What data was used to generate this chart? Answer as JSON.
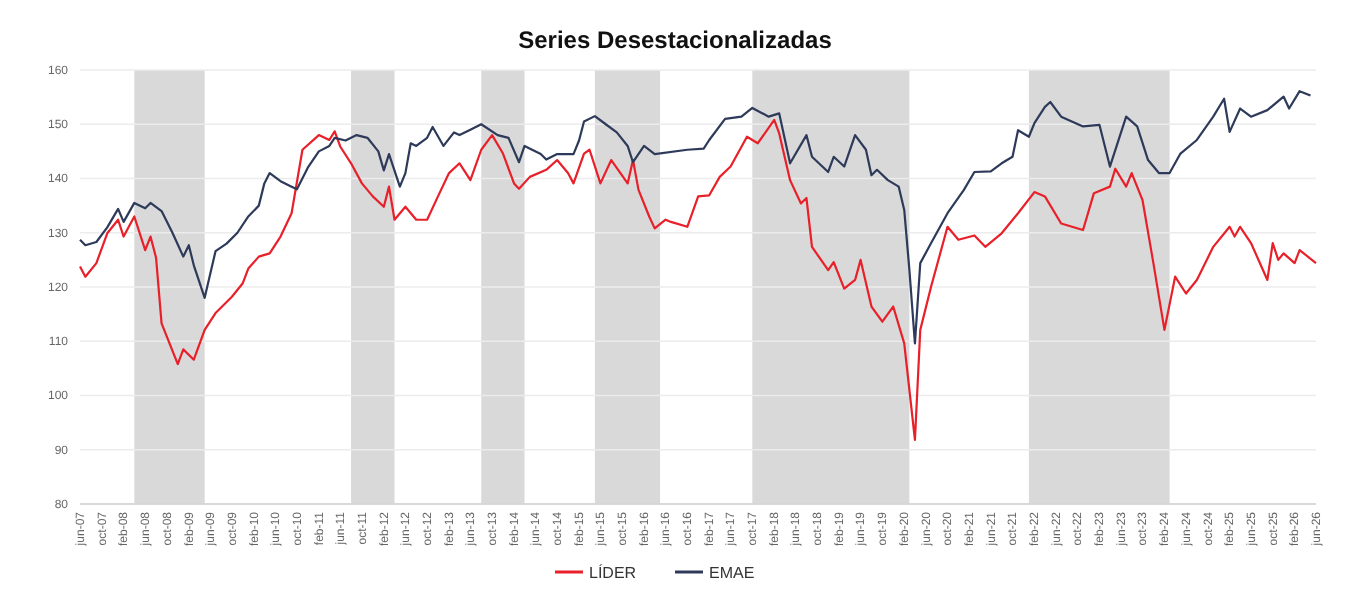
{
  "chart_data": {
    "type": "line",
    "title": "Series Desestacionalizadas",
    "legend": "bottom",
    "grid": "y",
    "marker": "none",
    "line_style": "solid",
    "xlim": [
      "2007-06",
      "2026-06"
    ],
    "ylim": [
      80,
      160
    ],
    "yticks": [
      80,
      90,
      100,
      110,
      120,
      130,
      140,
      150,
      160
    ],
    "xticks": [
      {
        "value": "2007-06",
        "label": "jun-07"
      },
      {
        "value": "2007-10",
        "label": "oct-07"
      },
      {
        "value": "2008-02",
        "label": "feb-08"
      },
      {
        "value": "2008-06",
        "label": "jun-08"
      },
      {
        "value": "2008-10",
        "label": "oct-08"
      },
      {
        "value": "2009-02",
        "label": "feb-09"
      },
      {
        "value": "2009-06",
        "label": "jun-09"
      },
      {
        "value": "2009-10",
        "label": "oct-09"
      },
      {
        "value": "2010-02",
        "label": "feb-10"
      },
      {
        "value": "2010-06",
        "label": "jun-10"
      },
      {
        "value": "2010-10",
        "label": "oct-10"
      },
      {
        "value": "2011-02",
        "label": "feb-11"
      },
      {
        "value": "2011-06",
        "label": "jun-11"
      },
      {
        "value": "2011-10",
        "label": "oct-11"
      },
      {
        "value": "2012-02",
        "label": "feb-12"
      },
      {
        "value": "2012-06",
        "label": "jun-12"
      },
      {
        "value": "2012-10",
        "label": "oct-12"
      },
      {
        "value": "2013-02",
        "label": "feb-13"
      },
      {
        "value": "2013-06",
        "label": "jun-13"
      },
      {
        "value": "2013-10",
        "label": "oct-13"
      },
      {
        "value": "2014-02",
        "label": "feb-14"
      },
      {
        "value": "2014-06",
        "label": "jun-14"
      },
      {
        "value": "2014-10",
        "label": "oct-14"
      },
      {
        "value": "2015-02",
        "label": "feb-15"
      },
      {
        "value": "2015-06",
        "label": "jun-15"
      },
      {
        "value": "2015-10",
        "label": "oct-15"
      },
      {
        "value": "2016-02",
        "label": "feb-16"
      },
      {
        "value": "2016-06",
        "label": "jun-16"
      },
      {
        "value": "2016-10",
        "label": "oct-16"
      },
      {
        "value": "2017-02",
        "label": "feb-17"
      },
      {
        "value": "2017-06",
        "label": "jun-17"
      },
      {
        "value": "2017-10",
        "label": "oct-17"
      },
      {
        "value": "2018-02",
        "label": "feb-18"
      },
      {
        "value": "2018-06",
        "label": "jun-18"
      },
      {
        "value": "2018-10",
        "label": "oct-18"
      },
      {
        "value": "2019-02",
        "label": "feb-19"
      },
      {
        "value": "2019-06",
        "label": "jun-19"
      },
      {
        "value": "2019-10",
        "label": "oct-19"
      },
      {
        "value": "2020-02",
        "label": "feb-20"
      },
      {
        "value": "2020-06",
        "label": "jun-20"
      },
      {
        "value": "2020-10",
        "label": "oct-20"
      },
      {
        "value": "2021-02",
        "label": "feb-21"
      },
      {
        "value": "2021-06",
        "label": "jun-21"
      },
      {
        "value": "2021-10",
        "label": "oct-21"
      },
      {
        "value": "2022-02",
        "label": "feb-22"
      },
      {
        "value": "2022-06",
        "label": "jun-22"
      },
      {
        "value": "2022-10",
        "label": "oct-22"
      },
      {
        "value": "2023-02",
        "label": "feb-23"
      },
      {
        "value": "2023-06",
        "label": "jun-23"
      },
      {
        "value": "2023-10",
        "label": "oct-23"
      },
      {
        "value": "2024-02",
        "label": "feb-24"
      },
      {
        "value": "2024-06",
        "label": "jun-24"
      },
      {
        "value": "2024-10",
        "label": "oct-24"
      },
      {
        "value": "2025-02",
        "label": "feb-25"
      },
      {
        "value": "2025-06",
        "label": "jun-25"
      },
      {
        "value": "2025-10",
        "label": "oct-25"
      },
      {
        "value": "2026-02",
        "label": "feb-26"
      },
      {
        "value": "2026-06",
        "label": "jun-26"
      }
    ],
    "bands": [
      {
        "axis": "x",
        "from": "2008-04",
        "to": "2009-05",
        "color": "#d9d9d9"
      },
      {
        "axis": "x",
        "from": "2011-08",
        "to": "2012-04",
        "color": "#d9d9d9"
      },
      {
        "axis": "x",
        "from": "2013-08",
        "to": "2014-04",
        "color": "#d9d9d9"
      },
      {
        "axis": "x",
        "from": "2015-05",
        "to": "2016-05",
        "color": "#d9d9d9"
      },
      {
        "axis": "x",
        "from": "2017-10",
        "to": "2020-03",
        "color": "#d9d9d9"
      },
      {
        "axis": "x",
        "from": "2022-01",
        "to": "2024-03",
        "color": "#d9d9d9"
      }
    ],
    "series": [
      {
        "name": "LÍDER",
        "color": "#e8202a",
        "x": [
          "2007-06",
          "2007-07",
          "2007-09",
          "2007-11",
          "2008-01",
          "2008-02",
          "2008-03",
          "2008-04",
          "2008-06",
          "2008-07",
          "2008-08",
          "2008-09",
          "2008-12",
          "2009-01",
          "2009-03",
          "2009-05",
          "2009-07",
          "2009-10",
          "2009-12",
          "2010-01",
          "2010-03",
          "2010-05",
          "2010-07",
          "2010-09",
          "2010-11",
          "2011-02",
          "2011-04",
          "2011-05",
          "2011-06",
          "2011-08",
          "2011-10",
          "2011-12",
          "2012-02",
          "2012-03",
          "2012-04",
          "2012-06",
          "2012-08",
          "2012-10",
          "2012-12",
          "2013-02",
          "2013-04",
          "2013-06",
          "2013-08",
          "2013-10",
          "2013-12",
          "2014-02",
          "2014-03",
          "2014-05",
          "2014-08",
          "2014-10",
          "2014-12",
          "2015-01",
          "2015-03",
          "2015-04",
          "2015-06",
          "2015-08",
          "2015-11",
          "2015-12",
          "2016-01",
          "2016-03",
          "2016-04",
          "2016-06",
          "2016-07",
          "2016-10",
          "2016-12",
          "2017-02",
          "2017-04",
          "2017-06",
          "2017-09",
          "2017-11",
          "2018-02",
          "2018-03",
          "2018-05",
          "2018-07",
          "2018-08",
          "2018-09",
          "2018-12",
          "2019-01",
          "2019-03",
          "2019-05",
          "2019-06",
          "2019-08",
          "2019-10",
          "2019-12",
          "2020-02",
          "2020-04",
          "2020-05",
          "2020-07",
          "2020-10",
          "2020-12",
          "2021-03",
          "2021-05",
          "2021-08",
          "2021-11",
          "2022-02",
          "2022-04",
          "2022-07",
          "2022-11",
          "2023-01",
          "2023-04",
          "2023-05",
          "2023-07",
          "2023-08",
          "2023-10",
          "2023-12",
          "2024-02",
          "2024-04",
          "2024-06",
          "2024-08",
          "2024-11",
          "2025-02",
          "2025-03",
          "2025-04",
          "2025-06",
          "2025-09",
          "2025-10",
          "2025-11",
          "2025-12",
          "2026-02",
          "2026-03",
          "2026-06"
        ],
        "values": [
          123.8,
          121.9,
          124.4,
          129.9,
          132.4,
          129.3,
          131.1,
          133,
          126.8,
          129.3,
          125.4,
          113.3,
          105.8,
          108.5,
          106.6,
          112.1,
          115.2,
          118.2,
          120.7,
          123.4,
          125.6,
          126.2,
          129.3,
          133.6,
          145.3,
          148,
          147.1,
          148.7,
          145.9,
          142.8,
          139.1,
          136.7,
          134.8,
          138.5,
          132.4,
          134.8,
          132.4,
          132.4,
          136.7,
          141,
          142.8,
          139.7,
          145.3,
          148,
          144.6,
          139.1,
          138.1,
          140.3,
          141.6,
          143.4,
          141,
          139.1,
          144.6,
          145.3,
          139.1,
          143.4,
          139.1,
          143.4,
          137.9,
          133,
          130.8,
          132.4,
          132,
          131.1,
          136.7,
          136.9,
          140.3,
          142.2,
          147.7,
          146.5,
          150.8,
          148.3,
          139.7,
          135.4,
          136.4,
          127.4,
          123.1,
          124.6,
          119.7,
          121.3,
          125,
          116.4,
          113.6,
          116.4,
          109.6,
          91.8,
          112.1,
          120.1,
          131.1,
          128.7,
          129.5,
          127.4,
          129.9,
          133.6,
          137.5,
          136.7,
          131.7,
          130.5,
          137.3,
          138.5,
          141.8,
          138.5,
          141,
          136,
          124.4,
          112.1,
          121.9,
          118.8,
          121.3,
          127.4,
          131.1,
          129.3,
          131.1,
          128.1,
          121.3,
          128.1,
          125,
          126.2,
          124.4,
          126.8,
          124.4
        ]
      },
      {
        "name": "EMAE",
        "color": "#2e3a59",
        "x": [
          "2007-06",
          "2007-07",
          "2007-09",
          "2007-11",
          "2008-01",
          "2008-02",
          "2008-04",
          "2008-06",
          "2008-07",
          "2008-09",
          "2008-11",
          "2009-01",
          "2009-02",
          "2009-03",
          "2009-05",
          "2009-07",
          "2009-09",
          "2009-11",
          "2010-01",
          "2010-03",
          "2010-04",
          "2010-05",
          "2010-07",
          "2010-09",
          "2010-10",
          "2010-12",
          "2011-02",
          "2011-04",
          "2011-05",
          "2011-07",
          "2011-09",
          "2011-11",
          "2012-01",
          "2012-02",
          "2012-03",
          "2012-05",
          "2012-06",
          "2012-07",
          "2012-08",
          "2012-10",
          "2012-11",
          "2013-01",
          "2013-03",
          "2013-04",
          "2013-06",
          "2013-08",
          "2013-11",
          "2014-01",
          "2014-03",
          "2014-04",
          "2014-07",
          "2014-08",
          "2014-10",
          "2015-01",
          "2015-02",
          "2015-03",
          "2015-05",
          "2015-07",
          "2015-09",
          "2015-11",
          "2015-12",
          "2016-02",
          "2016-04",
          "2016-10",
          "2017-01",
          "2017-02",
          "2017-05",
          "2017-08",
          "2017-10",
          "2018-01",
          "2018-03",
          "2018-05",
          "2018-08",
          "2018-09",
          "2018-12",
          "2019-01",
          "2019-03",
          "2019-05",
          "2019-07",
          "2019-08",
          "2019-09",
          "2019-11",
          "2020-01",
          "2020-02",
          "2020-03",
          "2020-04",
          "2020-05",
          "2020-07",
          "2020-10",
          "2021-01",
          "2021-03",
          "2021-06",
          "2021-08",
          "2021-10",
          "2021-11",
          "2022-01",
          "2022-02",
          "2022-04",
          "2022-05",
          "2022-07",
          "2022-11",
          "2023-02",
          "2023-04",
          "2023-07",
          "2023-09",
          "2023-11",
          "2024-01",
          "2024-03",
          "2024-05",
          "2024-08",
          "2024-11",
          "2025-01",
          "2025-02",
          "2025-04",
          "2025-06",
          "2025-09",
          "2025-12",
          "2026-01",
          "2026-03",
          "2026-05"
        ],
        "values": [
          128.7,
          127.7,
          128.3,
          131,
          134.4,
          132,
          135.5,
          134.5,
          135.5,
          134,
          130,
          125.6,
          127.7,
          124,
          118,
          126.6,
          128,
          130,
          133,
          135,
          139.1,
          141,
          139.5,
          138.5,
          138,
          142,
          145,
          146,
          147.5,
          147,
          148,
          147.5,
          145,
          141.5,
          144.5,
          138.5,
          141,
          146.5,
          146,
          147.5,
          149.5,
          146,
          148.5,
          148,
          149,
          150,
          148,
          147.5,
          143,
          146,
          144.5,
          143.5,
          144.5,
          144.5,
          147,
          150.5,
          151.5,
          150,
          148.5,
          146,
          143,
          146,
          144.5,
          145.3,
          145.5,
          147.1,
          151,
          151.4,
          153,
          151.4,
          152,
          142.8,
          148,
          144,
          141.2,
          144,
          142.2,
          148,
          145.3,
          140.6,
          141.6,
          139.7,
          138.5,
          134.2,
          123.1,
          109.6,
          124.4,
          128.1,
          133.6,
          137.9,
          141.2,
          141.3,
          142.8,
          144,
          148.9,
          147.7,
          150.2,
          153.2,
          154.1,
          151.4,
          149.6,
          149.9,
          142.2,
          151.4,
          149.6,
          143.4,
          141,
          141,
          144.6,
          147.1,
          151.4,
          154.7,
          148.6,
          152.9,
          151.4,
          152.6,
          155.1,
          152.9,
          156.1,
          155.3
        ]
      }
    ]
  }
}
